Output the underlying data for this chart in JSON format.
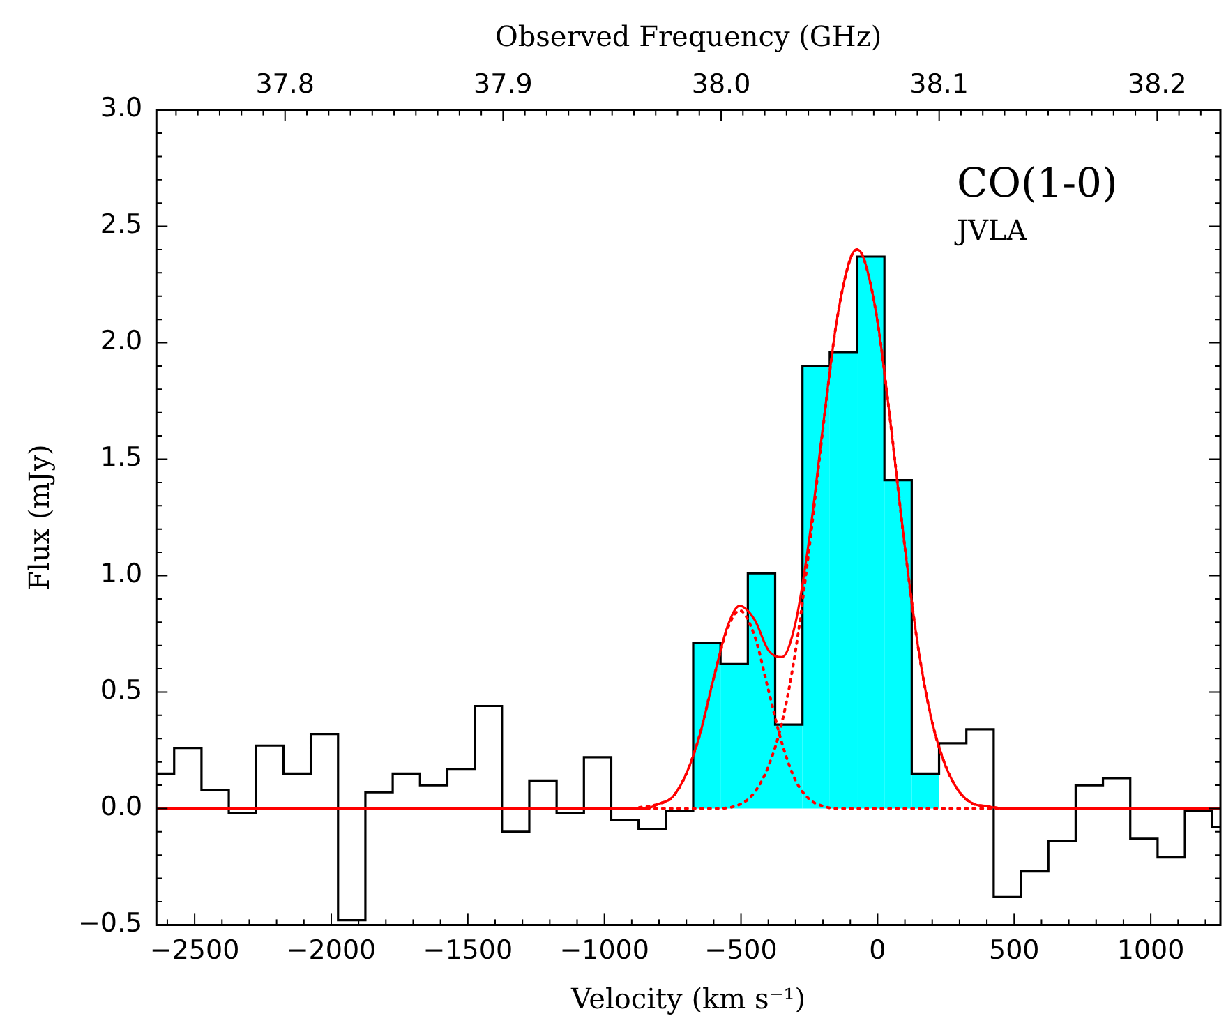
{
  "chart_data": {
    "type": "histogram",
    "xlabel": "Velocity (km s⁻¹)",
    "ylabel": "Flux (mJy)",
    "x2label": "Observed Frequency (GHz)",
    "annotations": [
      "CO(1-0)",
      "JVLA"
    ],
    "bins": [
      -675,
      -575,
      -475,
      -375,
      -275,
      -175,
      -75,
      25,
      125,
      225
    ],
    "series": [
      {
        "color": "#00ffff",
        "values": [
          0.71,
          0.62,
          1.01,
          0.36,
          1.9,
          1.96,
          2.37,
          1.41,
          0.15
        ]
      },
      {
        "type": "step",
        "color": "#000000",
        "x": [
          -2640,
          -2575,
          -2475,
          -2375,
          -2275,
          -2175,
          -2075,
          -1975,
          -1875,
          -1775,
          -1675,
          -1575,
          -1475,
          -1375,
          -1275,
          -1175,
          -1075,
          -975,
          -875,
          -775,
          -675,
          -575,
          -475,
          -375,
          -275,
          -175,
          -75,
          25,
          125,
          225,
          325,
          425,
          525,
          625,
          725,
          825,
          925,
          1025,
          1125,
          1225,
          1255
        ],
        "values": [
          0.15,
          0.26,
          0.08,
          -0.02,
          0.27,
          0.15,
          0.32,
          -0.48,
          0.07,
          0.15,
          0.1,
          0.17,
          0.44,
          -0.1,
          0.12,
          -0.02,
          0.22,
          -0.05,
          -0.09,
          -0.01,
          0.71,
          0.62,
          1.01,
          0.36,
          1.9,
          1.96,
          2.37,
          1.41,
          0.15,
          0.28,
          0.34,
          -0.38,
          -0.27,
          -0.14,
          0.1,
          0.13,
          -0.13,
          -0.21,
          -0.01,
          -0.08,
          -0.08
        ]
      },
      {
        "type": "line",
        "color": "#ff0000",
        "line_style": "solid",
        "x": [
          -2640,
          -1000,
          -900,
          -850,
          -800,
          -750,
          -700,
          -650,
          -600,
          -550,
          -505,
          -450,
          -400,
          -350,
          -300,
          -250,
          -200,
          -150,
          -100,
          -75,
          -50,
          0,
          50,
          100,
          150,
          200,
          250,
          300,
          350,
          400,
          450,
          1255
        ],
        "values": [
          0,
          0,
          0,
          0,
          0.02,
          0.05,
          0.15,
          0.32,
          0.56,
          0.78,
          0.87,
          0.81,
          0.68,
          0.65,
          0.8,
          1.16,
          1.64,
          2.09,
          2.36,
          2.4,
          2.36,
          2.09,
          1.63,
          1.12,
          0.68,
          0.37,
          0.18,
          0.07,
          0.02,
          0.01,
          0,
          0
        ]
      },
      {
        "type": "line",
        "color": "#ff0000",
        "line_style": "dotted",
        "x": [
          -900,
          -800,
          -750,
          -700,
          -650,
          -600,
          -550,
          -505,
          -450,
          -400,
          -350,
          -300,
          -250,
          -200,
          -150,
          -100,
          0,
          100,
          200,
          300,
          450
        ],
        "values": [
          0,
          0.02,
          0.05,
          0.15,
          0.32,
          0.56,
          0.77,
          0.85,
          0.74,
          0.51,
          0.28,
          0.12,
          0.04,
          0.01,
          0,
          0,
          0,
          0,
          0,
          0,
          0
        ]
      },
      {
        "type": "line",
        "color": "#ff0000",
        "line_style": "dotted",
        "x": [
          -900,
          -700,
          -600,
          -500,
          -450,
          -400,
          -350,
          -300,
          -250,
          -200,
          -150,
          -100,
          -75,
          -50,
          0,
          50,
          100,
          150,
          200,
          250,
          300,
          350,
          400,
          450
        ],
        "values": [
          0,
          0,
          0,
          0.02,
          0.07,
          0.18,
          0.37,
          0.68,
          1.12,
          1.63,
          2.09,
          2.36,
          2.4,
          2.36,
          2.09,
          1.63,
          1.12,
          0.68,
          0.37,
          0.18,
          0.07,
          0.02,
          0.01,
          0
        ]
      }
    ],
    "marker": "none",
    "grid": false,
    "legend": false,
    "xlim": [
      -2640,
      1255
    ],
    "xticks": [
      {
        "value": -2600,
        "label": null
      },
      {
        "value": -2500,
        "label": "−2500"
      },
      {
        "value": -2400,
        "label": null
      },
      {
        "value": -2300,
        "label": null
      },
      {
        "value": -2200,
        "label": null
      },
      {
        "value": -2100,
        "label": null
      },
      {
        "value": -2000,
        "label": "−2000"
      },
      {
        "value": -1900,
        "label": null
      },
      {
        "value": -1800,
        "label": null
      },
      {
        "value": -1700,
        "label": null
      },
      {
        "value": -1600,
        "label": null
      },
      {
        "value": -1500,
        "label": "−1500"
      },
      {
        "value": -1400,
        "label": null
      },
      {
        "value": -1300,
        "label": null
      },
      {
        "value": -1200,
        "label": null
      },
      {
        "value": -1100,
        "label": null
      },
      {
        "value": -1000,
        "label": "−1000"
      },
      {
        "value": -900,
        "label": null
      },
      {
        "value": -800,
        "label": null
      },
      {
        "value": -700,
        "label": null
      },
      {
        "value": -600,
        "label": null
      },
      {
        "value": -500,
        "label": "−500"
      },
      {
        "value": -400,
        "label": null
      },
      {
        "value": -300,
        "label": null
      },
      {
        "value": -200,
        "label": null
      },
      {
        "value": -100,
        "label": null
      },
      0,
      {
        "value": 100,
        "label": null
      },
      {
        "value": 200,
        "label": null
      },
      {
        "value": 300,
        "label": null
      },
      {
        "value": 400,
        "label": null
      },
      500,
      {
        "value": 600,
        "label": null
      },
      {
        "value": 700,
        "label": null
      },
      {
        "value": 800,
        "label": null
      },
      {
        "value": 900,
        "label": null
      },
      1000,
      {
        "value": 1100,
        "label": null
      },
      {
        "value": 1200,
        "label": null
      }
    ],
    "ylim": [
      -0.5,
      3.0
    ],
    "yticks": [
      {
        "value": -0.5,
        "label": "−0.5"
      },
      {
        "value": -0.4,
        "label": null
      },
      {
        "value": -0.3,
        "label": null
      },
      {
        "value": -0.2,
        "label": null
      },
      {
        "value": -0.1,
        "label": null
      },
      {
        "value": 0,
        "label": "0.0"
      },
      {
        "value": 0.1,
        "label": null
      },
      {
        "value": 0.2,
        "label": null
      },
      {
        "value": 0.3,
        "label": null
      },
      {
        "value": 0.4,
        "label": null
      },
      0.5,
      {
        "value": 0.6,
        "label": null
      },
      {
        "value": 0.7,
        "label": null
      },
      {
        "value": 0.8,
        "label": null
      },
      {
        "value": 0.9,
        "label": null
      },
      {
        "value": 1,
        "label": "1.0"
      },
      {
        "value": 1.1,
        "label": null
      },
      {
        "value": 1.2,
        "label": null
      },
      {
        "value": 1.3,
        "label": null
      },
      {
        "value": 1.4,
        "label": null
      },
      1.5,
      {
        "value": 1.6,
        "label": null
      },
      {
        "value": 1.7,
        "label": null
      },
      {
        "value": 1.8,
        "label": null
      },
      {
        "value": 1.9,
        "label": null
      },
      {
        "value": 2,
        "label": "2.0"
      },
      {
        "value": 2.1,
        "label": null
      },
      {
        "value": 2.2,
        "label": null
      },
      {
        "value": 2.3,
        "label": null
      },
      {
        "value": 2.4,
        "label": null
      },
      2.5,
      {
        "value": 2.6,
        "label": null
      },
      {
        "value": 2.7,
        "label": null
      },
      {
        "value": 2.8,
        "label": null
      },
      {
        "value": 2.9,
        "label": null
      },
      {
        "value": 3,
        "label": "3.0"
      }
    ],
    "x2lim": [
      37.741,
      38.229
    ],
    "x2ticks": [
      {
        "value": 37.75,
        "label": null
      },
      {
        "value": 37.76,
        "label": null
      },
      {
        "value": 37.77,
        "label": null
      },
      {
        "value": 37.78,
        "label": null
      },
      {
        "value": 37.79,
        "label": null
      },
      37.8,
      {
        "value": 37.81,
        "label": null
      },
      {
        "value": 37.82,
        "label": null
      },
      {
        "value": 37.83,
        "label": null
      },
      {
        "value": 37.84,
        "label": null
      },
      {
        "value": 37.85,
        "label": null
      },
      {
        "value": 37.86,
        "label": null
      },
      {
        "value": 37.87,
        "label": null
      },
      {
        "value": 37.88,
        "label": null
      },
      {
        "value": 37.89,
        "label": null
      },
      37.9,
      {
        "value": 37.91,
        "label": null
      },
      {
        "value": 37.92,
        "label": null
      },
      {
        "value": 37.93,
        "label": null
      },
      {
        "value": 37.94,
        "label": null
      },
      {
        "value": 37.95,
        "label": null
      },
      {
        "value": 37.96,
        "label": null
      },
      {
        "value": 37.97,
        "label": null
      },
      {
        "value": 37.98,
        "label": null
      },
      {
        "value": 37.99,
        "label": null
      },
      {
        "value": 38.0,
        "label": "38.0"
      },
      {
        "value": 38.01,
        "label": null
      },
      {
        "value": 38.02,
        "label": null
      },
      {
        "value": 38.03,
        "label": null
      },
      {
        "value": 38.04,
        "label": null
      },
      {
        "value": 38.05,
        "label": null
      },
      {
        "value": 38.06,
        "label": null
      },
      {
        "value": 38.07,
        "label": null
      },
      {
        "value": 38.08,
        "label": null
      },
      {
        "value": 38.09,
        "label": null
      },
      38.1,
      {
        "value": 38.11,
        "label": null
      },
      {
        "value": 38.12,
        "label": null
      },
      {
        "value": 38.13,
        "label": null
      },
      {
        "value": 38.14,
        "label": null
      },
      {
        "value": 38.15,
        "label": null
      },
      {
        "value": 38.16,
        "label": null
      },
      {
        "value": 38.17,
        "label": null
      },
      {
        "value": 38.18,
        "label": null
      },
      {
        "value": 38.19,
        "label": null
      },
      38.2,
      {
        "value": 38.21,
        "label": null
      },
      {
        "value": 38.22,
        "label": null
      }
    ]
  }
}
